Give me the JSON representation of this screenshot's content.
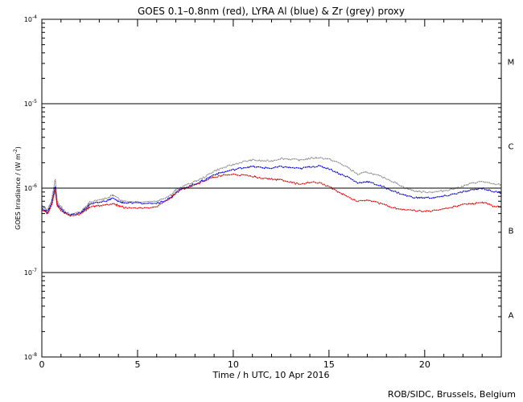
{
  "chart_data": {
    "type": "line",
    "title": "GOES 0.1–0.8nm (red), LYRA Al (blue) & Zr (grey) proxy",
    "xlabel": "Time / h UTC, 10 Apr 2016",
    "ylabel": "GOES Irradiance / (W m",
    "ylabel_units_exp": "-2",
    "ylabel_close": ")",
    "credit": "ROB/SIDC, Brussels, Belgium",
    "xlim": [
      0,
      24
    ],
    "ylim_log10": [
      -8,
      -4
    ],
    "x_ticks": [
      {
        "value": 0,
        "label": "0"
      },
      {
        "value": 5,
        "label": "5"
      },
      {
        "value": 10,
        "label": "10"
      },
      {
        "value": 15,
        "label": "15"
      },
      {
        "value": 20,
        "label": "20"
      }
    ],
    "y_ticks": [
      {
        "exp": -4,
        "base": "10",
        "sup": "-4"
      },
      {
        "exp": -5,
        "base": "10",
        "sup": "-5"
      },
      {
        "exp": -6,
        "base": "10",
        "sup": "-6"
      },
      {
        "exp": -7,
        "base": "10",
        "sup": "-7"
      },
      {
        "exp": -8,
        "base": "10",
        "sup": "-8"
      }
    ],
    "flare_class_lines": [
      -5,
      -6,
      -7
    ],
    "flare_classes": [
      {
        "label": "M",
        "exp": -4.5
      },
      {
        "label": "C",
        "exp": -5.5
      },
      {
        "label": "B",
        "exp": -6.5
      },
      {
        "label": "A",
        "exp": -7.5
      }
    ],
    "series": [
      {
        "name": "LYRA Zr (grey)",
        "color": "#8c8c8c",
        "x": [
          0.0,
          0.3,
          0.5,
          0.7,
          0.8,
          1.0,
          1.2,
          1.5,
          2.0,
          2.3,
          2.5,
          3.0,
          3.5,
          3.7,
          4.0,
          4.3,
          5.0,
          6.0,
          6.5,
          6.8,
          7.0,
          7.5,
          8.0,
          8.5,
          9.0,
          9.5,
          10.0,
          10.5,
          11.0,
          11.5,
          12.0,
          12.5,
          13.0,
          13.5,
          14.0,
          14.5,
          15.0,
          15.5,
          16.0,
          16.5,
          17.0,
          17.5,
          18.0,
          18.5,
          19.0,
          19.5,
          20.0,
          20.5,
          21.0,
          21.5,
          22.0,
          22.5,
          23.0,
          23.5,
          24.0
        ],
        "y": [
          6.2e-07,
          5.5e-07,
          7e-07,
          1.3e-06,
          7e-07,
          6e-07,
          5.3e-07,
          4.9e-07,
          5.2e-07,
          6e-07,
          6.8e-07,
          7.2e-07,
          7.8e-07,
          8.3e-07,
          7.5e-07,
          7e-07,
          6.9e-07,
          7e-07,
          7.8e-07,
          8.5e-07,
          9.5e-07,
          1.08e-06,
          1.2e-06,
          1.35e-06,
          1.6e-06,
          1.75e-06,
          1.9e-06,
          2.05e-06,
          2.15e-06,
          2.1e-06,
          2.1e-06,
          2.25e-06,
          2.2e-06,
          2.15e-06,
          2.25e-06,
          2.3e-06,
          2.2e-06,
          2e-06,
          1.75e-06,
          1.45e-06,
          1.55e-06,
          1.42e-06,
          1.3e-06,
          1.15e-06,
          1e-06,
          9.2e-07,
          9e-07,
          9e-07,
          9.3e-07,
          9.8e-07,
          1.05e-06,
          1.15e-06,
          1.2e-06,
          1.12e-06,
          1.1e-06
        ]
      },
      {
        "name": "LYRA Al (blue)",
        "color": "#0000dd",
        "x": [
          0.0,
          0.3,
          0.5,
          0.7,
          0.8,
          1.0,
          1.2,
          1.5,
          2.0,
          2.3,
          2.5,
          3.0,
          3.5,
          3.7,
          4.0,
          4.3,
          5.0,
          6.0,
          6.5,
          6.8,
          7.0,
          7.5,
          8.0,
          8.5,
          9.0,
          9.5,
          10.0,
          10.5,
          11.0,
          11.5,
          12.0,
          12.5,
          13.0,
          13.5,
          14.0,
          14.5,
          15.0,
          15.5,
          16.0,
          16.5,
          17.0,
          17.5,
          18.0,
          18.5,
          19.0,
          19.5,
          20.0,
          20.5,
          21.0,
          21.5,
          22.0,
          22.5,
          23.0,
          23.5,
          24.0
        ],
        "y": [
          5.8e-07,
          5.2e-07,
          6.5e-07,
          1.05e-06,
          6.5e-07,
          5.6e-07,
          5.1e-07,
          4.8e-07,
          5e-07,
          5.8e-07,
          6.4e-07,
          6.8e-07,
          7.2e-07,
          7.6e-07,
          7e-07,
          6.7e-07,
          6.6e-07,
          6.6e-07,
          7.3e-07,
          8e-07,
          9e-07,
          1.02e-06,
          1.12e-06,
          1.25e-06,
          1.45e-06,
          1.55e-06,
          1.65e-06,
          1.75e-06,
          1.8e-06,
          1.75e-06,
          1.72e-06,
          1.8e-06,
          1.75e-06,
          1.7e-06,
          1.8e-06,
          1.82e-06,
          1.7e-06,
          1.5e-06,
          1.35e-06,
          1.15e-06,
          1.2e-06,
          1.1e-06,
          1e-06,
          9e-07,
          8.2e-07,
          7.7e-07,
          7.7e-07,
          7.7e-07,
          8e-07,
          8.5e-07,
          9e-07,
          9.5e-07,
          1e-06,
          9.2e-07,
          8.8e-07
        ]
      },
      {
        "name": "GOES 0.1–0.8nm (red)",
        "color": "#e00000",
        "x": [
          0.0,
          0.3,
          0.5,
          0.7,
          0.8,
          1.0,
          1.2,
          1.5,
          2.0,
          2.3,
          2.5,
          3.0,
          3.5,
          3.7,
          4.0,
          4.3,
          5.0,
          6.0,
          6.5,
          6.8,
          7.0,
          7.5,
          8.0,
          8.5,
          9.0,
          9.5,
          10.0,
          10.5,
          11.0,
          11.5,
          12.0,
          12.5,
          13.0,
          13.5,
          14.0,
          14.5,
          15.0,
          15.5,
          16.0,
          16.5,
          17.0,
          17.5,
          18.0,
          18.5,
          19.0,
          19.5,
          20.0,
          20.5,
          21.0,
          21.5,
          22.0,
          22.5,
          23.0,
          23.5,
          24.0
        ],
        "y": [
          5.6e-07,
          5e-07,
          6.2e-07,
          9.5e-07,
          6.2e-07,
          5.4e-07,
          5e-07,
          4.7e-07,
          4.9e-07,
          5.5e-07,
          6e-07,
          6.2e-07,
          6.4e-07,
          6.6e-07,
          6.2e-07,
          5.9e-07,
          5.8e-07,
          6e-07,
          7e-07,
          7.8e-07,
          8.8e-07,
          1e-06,
          1.1e-06,
          1.22e-06,
          1.35e-06,
          1.42e-06,
          1.45e-06,
          1.42e-06,
          1.38e-06,
          1.32e-06,
          1.28e-06,
          1.25e-06,
          1.18e-06,
          1.1e-06,
          1.18e-06,
          1.15e-06,
          1.05e-06,
          9e-07,
          7.8e-07,
          7e-07,
          7.3e-07,
          6.8e-07,
          6.2e-07,
          5.8e-07,
          5.5e-07,
          5.4e-07,
          5.3e-07,
          5.4e-07,
          5.7e-07,
          6e-07,
          6.4e-07,
          6.5e-07,
          6.8e-07,
          6.2e-07,
          5.9e-07
        ]
      }
    ]
  }
}
